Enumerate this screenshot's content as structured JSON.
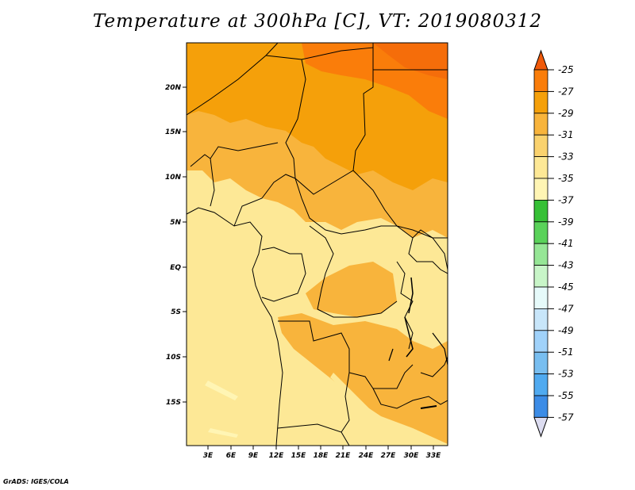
{
  "title": "Temperature at 300hPa [C], VT: 2019080312",
  "credit": "GrADS: IGES/COLA",
  "axes": {
    "lat_ticks": [
      "20N",
      "15N",
      "10N",
      "5N",
      "EQ",
      "5S",
      "10S",
      "15S"
    ],
    "lon_ticks": [
      "3E",
      "6E",
      "9E",
      "12E",
      "15E",
      "18E",
      "21E",
      "24E",
      "27E",
      "30E",
      "33E"
    ]
  },
  "colorbar": {
    "labels": [
      "-25",
      "-27",
      "-29",
      "-31",
      "-33",
      "-35",
      "-37",
      "-39",
      "-41",
      "-43",
      "-45",
      "-47",
      "-49",
      "-51",
      "-53",
      "-55",
      "-57"
    ],
    "colors": [
      "#f05a0a",
      "#fa7d0a",
      "#f5a00a",
      "#f8b43c",
      "#fad26e",
      "#fde896",
      "#fff5b4",
      "#36c036",
      "#5ad25a",
      "#96e696",
      "#c8f5c8",
      "#e6fafa",
      "#c8e6fa",
      "#a0d2fa",
      "#78bef0",
      "#50aaf0",
      "#3c8ce6",
      "#2864dc",
      "#1e3cb4",
      "#14288c",
      "#0a0a6e",
      "#dcdcf0"
    ]
  },
  "map_colors": {
    "c27": "#f5a00a",
    "c29": "#f8b43c",
    "c31": "#fad26e",
    "c33": "#fde896",
    "border": "#000000"
  }
}
